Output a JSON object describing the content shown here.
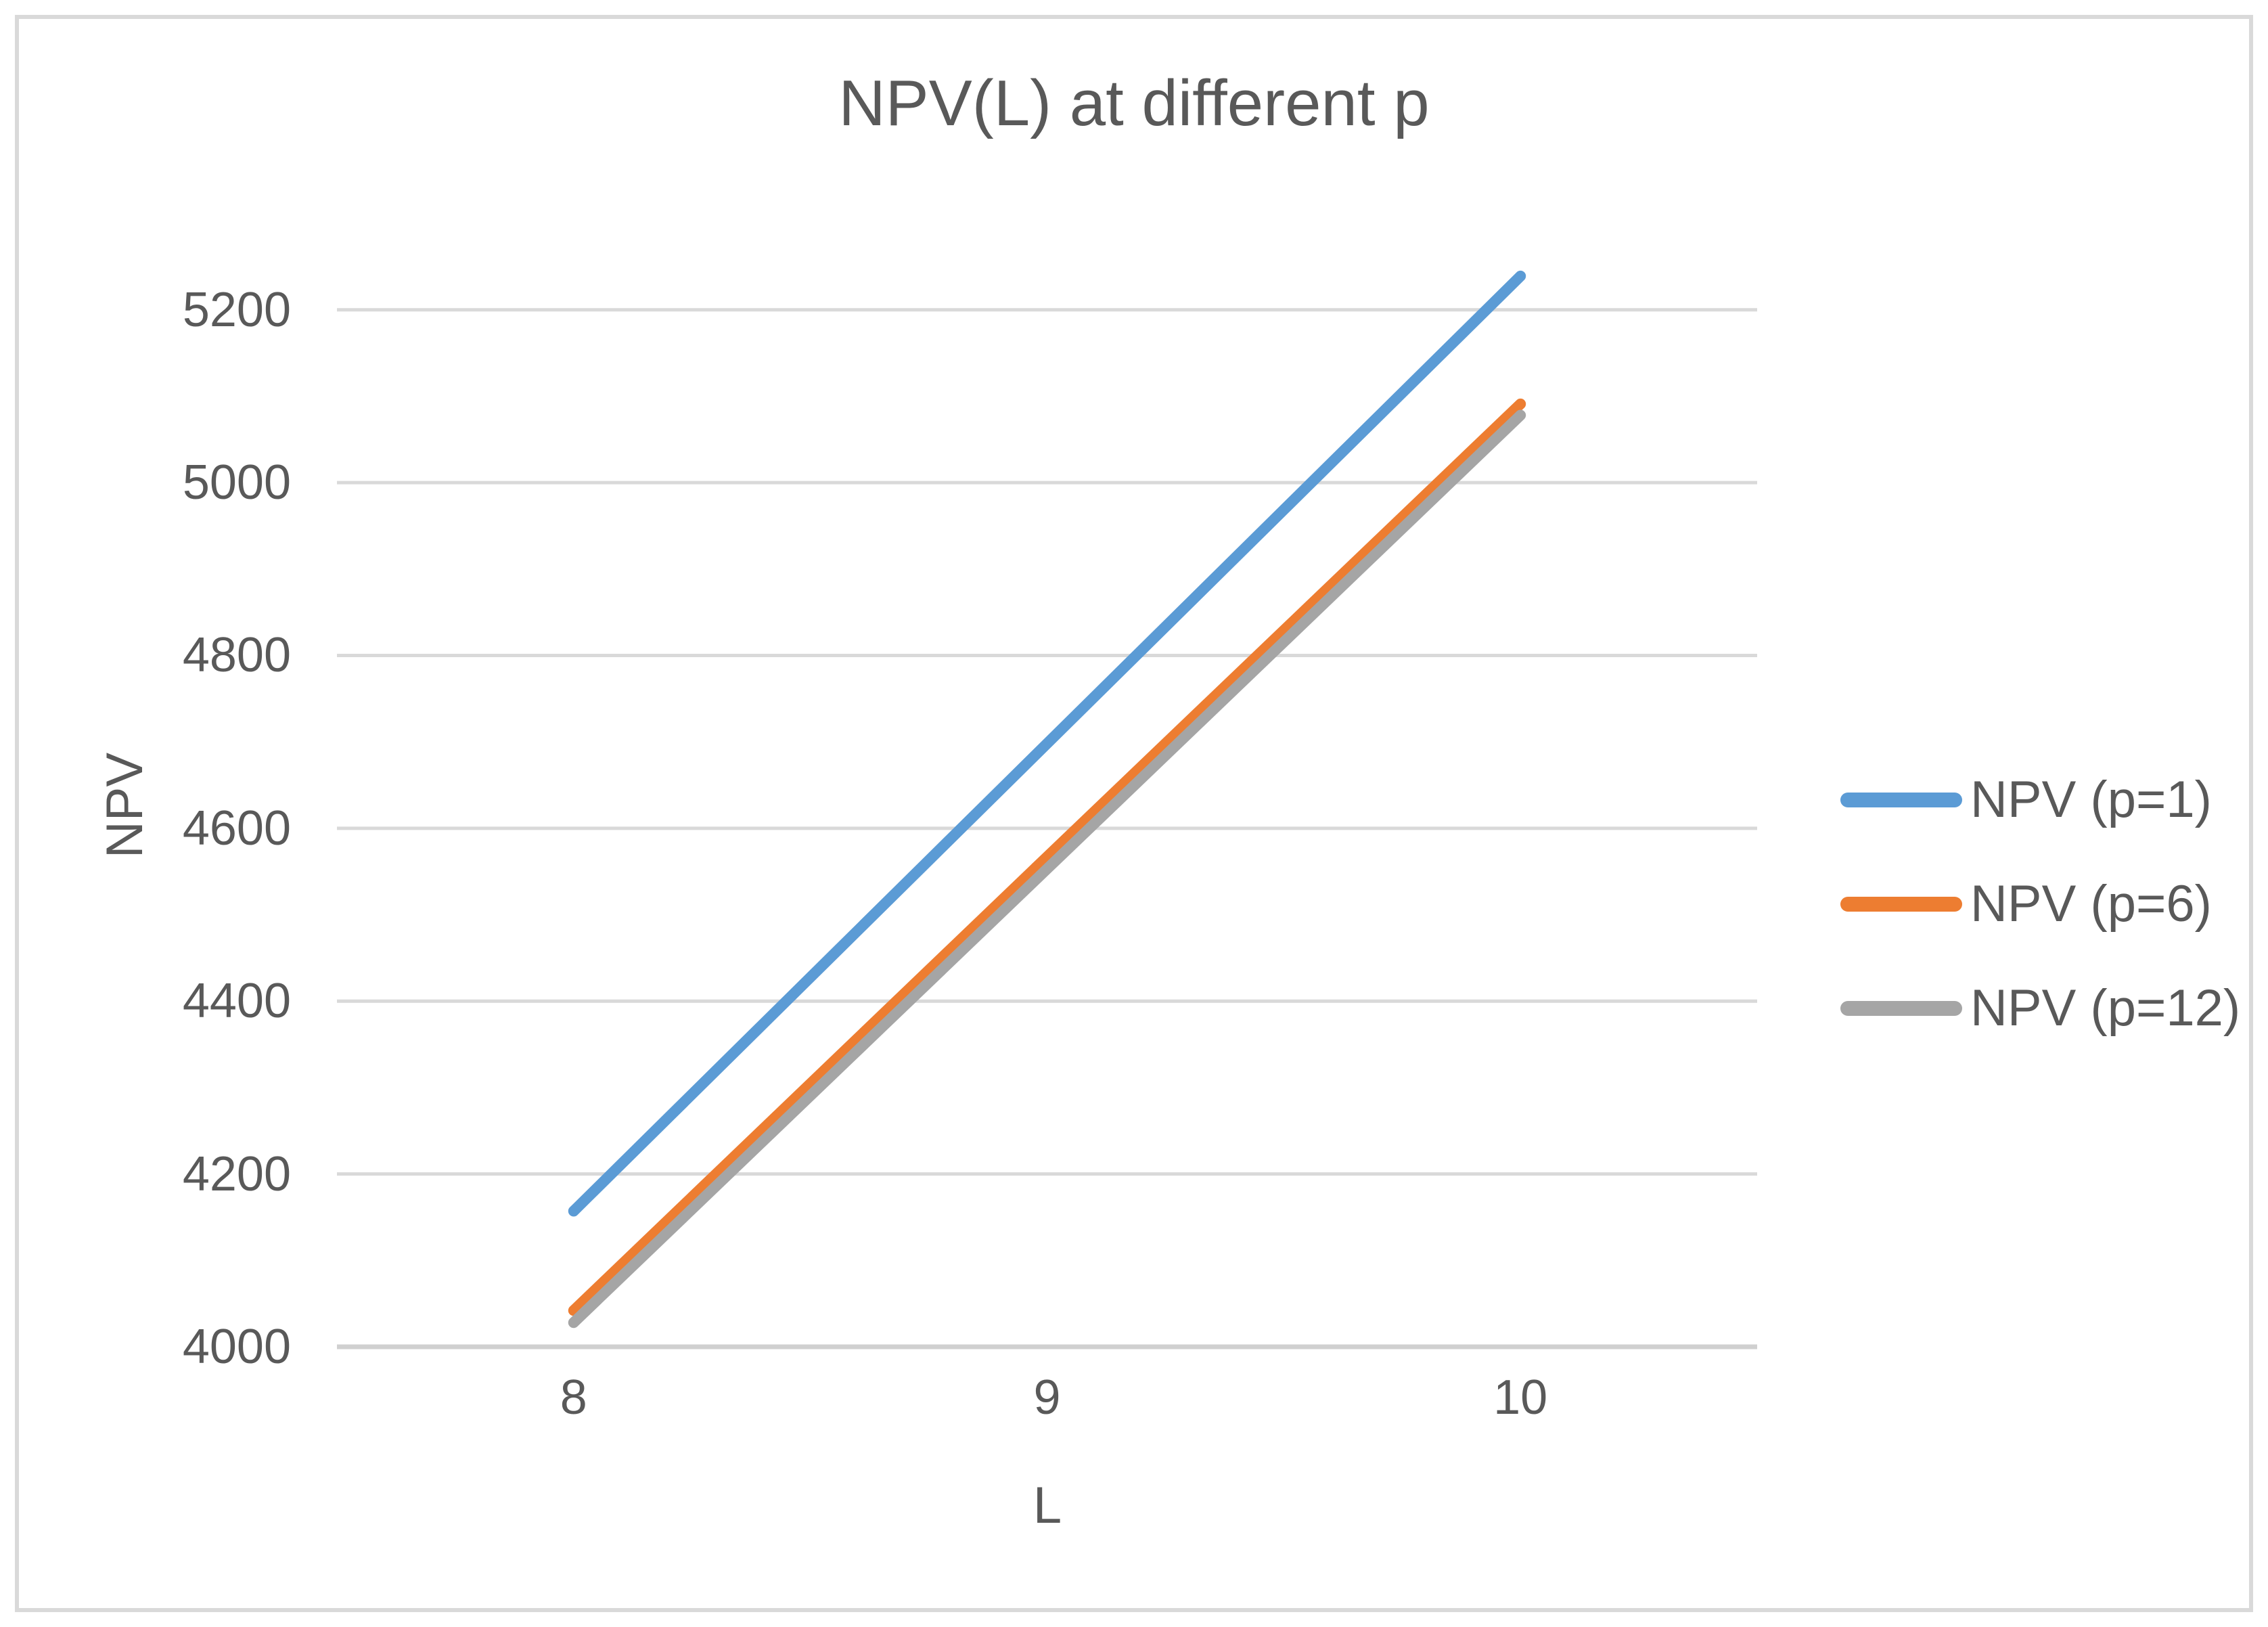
{
  "chart_data": {
    "type": "line",
    "title": "NPV(L) at different p",
    "xlabel": "L",
    "ylabel": "NPV",
    "x": [
      8,
      9,
      10
    ],
    "series": [
      {
        "name": "NPV (p=1)",
        "color": "#5B9BD5",
        "values": [
          4157,
          4698,
          5239
        ]
      },
      {
        "name": "NPV (p=6)",
        "color": "#ED7D31",
        "values": [
          4042,
          4567,
          5091
        ]
      },
      {
        "name": "NPV (p=12)",
        "color": "#A5A5A5",
        "values": [
          4028,
          4553,
          5078
        ]
      }
    ],
    "ylim": [
      4000,
      5300
    ],
    "yticks": [
      4000,
      4200,
      4400,
      4600,
      4800,
      5000,
      5200
    ],
    "xticks": [
      "8",
      "9",
      "10"
    ],
    "grid": "horizontal",
    "legend_position": "right",
    "colors": {
      "text": "#595959",
      "gridline": "#D9D9D9",
      "axis_line": "#D0D0D0",
      "frame_border": "#D9D9D9",
      "background": "#FFFFFF"
    }
  }
}
